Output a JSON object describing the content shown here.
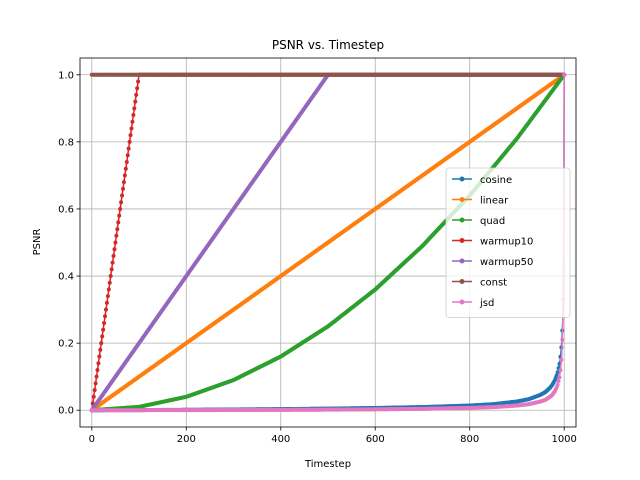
{
  "chart_data": {
    "type": "line",
    "title": "PSNR vs. Timestep",
    "xlabel": "Timestep",
    "ylabel": "PSNR",
    "xlim": [
      -25,
      1025
    ],
    "ylim": [
      -0.05,
      1.05
    ],
    "xticks": [
      0,
      200,
      400,
      600,
      800,
      1000
    ],
    "yticks": [
      0.0,
      0.2,
      0.4,
      0.6,
      0.8,
      1.0
    ],
    "xtick_labels": [
      "0",
      "200",
      "400",
      "600",
      "800",
      "1000"
    ],
    "ytick_labels": [
      "0.0",
      "0.2",
      "0.4",
      "0.6",
      "0.8",
      "1.0"
    ],
    "grid": true,
    "legend_position": "center-right",
    "marker": "circle",
    "series": [
      {
        "name": "cosine",
        "color": "#1f77b4",
        "x": [
          0,
          100,
          200,
          300,
          400,
          500,
          600,
          700,
          800,
          850,
          900,
          925,
          950,
          960,
          970,
          975,
          980,
          985,
          990,
          993,
          995,
          997,
          998,
          999,
          1000
        ],
        "y": [
          0.0,
          0.0005,
          0.0013,
          0.0022,
          0.0033,
          0.0048,
          0.0067,
          0.0094,
          0.014,
          0.018,
          0.026,
          0.033,
          0.046,
          0.054,
          0.067,
          0.076,
          0.089,
          0.107,
          0.138,
          0.17,
          0.205,
          0.27,
          0.33,
          0.45,
          1.0
        ]
      },
      {
        "name": "linear",
        "color": "#ff7f0e",
        "x": [
          0,
          1000
        ],
        "y": [
          0.0,
          1.0
        ]
      },
      {
        "name": "quad",
        "color": "#2ca02c",
        "x": [
          0,
          100,
          200,
          300,
          400,
          500,
          600,
          700,
          800,
          900,
          1000
        ],
        "y": [
          0.0,
          0.01,
          0.04,
          0.09,
          0.16,
          0.25,
          0.36,
          0.49,
          0.64,
          0.81,
          1.0
        ]
      },
      {
        "name": "warmup10",
        "color": "#d62728",
        "x": [
          0,
          100,
          200,
          400,
          600,
          800,
          1000
        ],
        "y": [
          0.0,
          1.0,
          1.0,
          1.0,
          1.0,
          1.0,
          1.0
        ]
      },
      {
        "name": "warmup50",
        "color": "#9467bd",
        "x": [
          0,
          500,
          600,
          800,
          1000
        ],
        "y": [
          0.0,
          1.0,
          1.0,
          1.0,
          1.0
        ]
      },
      {
        "name": "const",
        "color": "#8c564b",
        "x": [
          0,
          1000
        ],
        "y": [
          1.0,
          1.0
        ]
      },
      {
        "name": "jsd",
        "color": "#e377c2",
        "x": [
          0,
          100,
          200,
          300,
          400,
          500,
          600,
          700,
          800,
          850,
          900,
          925,
          950,
          960,
          970,
          975,
          980,
          985,
          990,
          993,
          995,
          997,
          998,
          999,
          1000
        ],
        "y": [
          0.0,
          0.0001,
          0.0003,
          0.0006,
          0.0011,
          0.0017,
          0.0027,
          0.0042,
          0.0069,
          0.0093,
          0.014,
          0.018,
          0.026,
          0.031,
          0.04,
          0.046,
          0.056,
          0.07,
          0.098,
          0.13,
          0.17,
          0.25,
          0.33,
          0.5,
          1.0
        ]
      }
    ]
  }
}
